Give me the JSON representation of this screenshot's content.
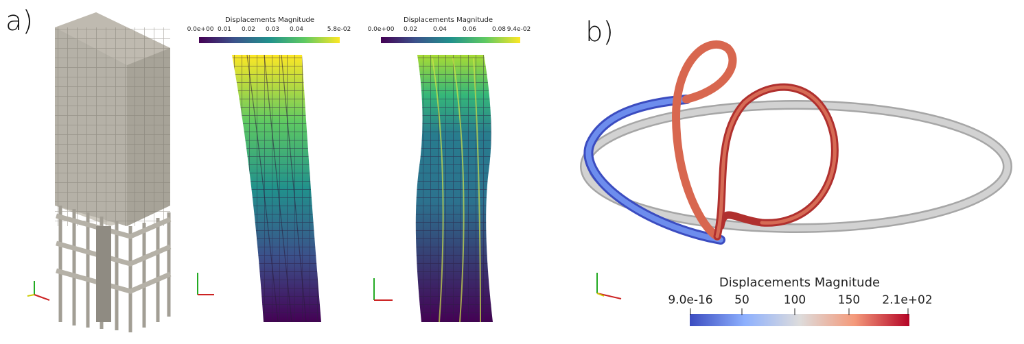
{
  "panels": {
    "a": {
      "label": "a)"
    },
    "b": {
      "label": "b)"
    }
  },
  "colorbars": [
    {
      "title": "Displacements Magnitude",
      "colormap": "viridis",
      "ticks": [
        "0.0e+00",
        "0.01",
        "0.02",
        "0.03",
        "0.04",
        "5.8e-02"
      ]
    },
    {
      "title": "Displacements Magnitude",
      "colormap": "viridis",
      "ticks": [
        "0.0e+00",
        "0.02",
        "0.04",
        "0.06",
        "0.08",
        "9.4e-02"
      ]
    },
    {
      "title": "Displacements Magnitude",
      "colormap": "coolwarm",
      "ticks": [
        "9.0e-16",
        "50",
        "100",
        "150",
        "2.1e+02"
      ]
    }
  ],
  "axes_triad": {
    "x": "X",
    "y": "Y",
    "z": "Z"
  },
  "colors": {
    "building": "#b5b1a7",
    "ring": "#c8c8c8",
    "viridis_low": "#440154",
    "viridis_high": "#fde725",
    "coolwarm_low": "#3b4cc0",
    "coolwarm_high": "#b40426"
  }
}
